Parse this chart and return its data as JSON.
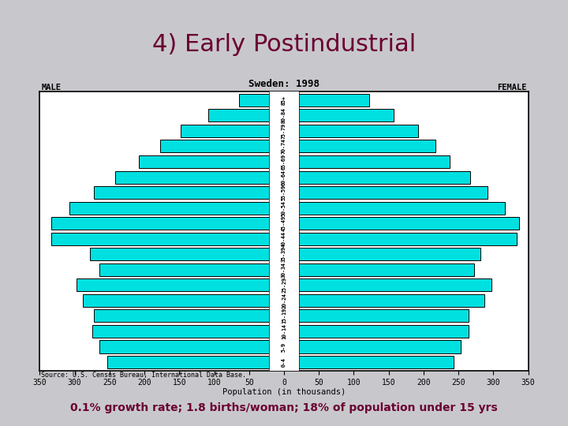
{
  "title": "4) Early Postindustrial",
  "subtitle": "Sweden: 1998",
  "male_label": "MALE",
  "female_label": "FEMALE",
  "xlabel": "Population (in thousands)",
  "source": "Source: U.S. Census Bureau, International Data Base.",
  "bottom_text": "0.1% growth rate; 1.8 births/woman; 18% of population under 15 yrs",
  "background_color": "#c8c8cc",
  "chart_bg": "#ffffff",
  "bar_color": "#00e0e0",
  "bar_edge": "#000000",
  "title_color": "#6b0032",
  "bottom_text_color": "#6b0032",
  "age_groups": [
    "0-4",
    "5-9",
    "10-14",
    "15-19",
    "20-24",
    "25-29",
    "30-34",
    "35-39",
    "40-44",
    "45-49",
    "50-54",
    "55-59",
    "60-64",
    "65-69",
    "70-74",
    "75-79",
    "80-84",
    "85+"
  ],
  "male_values": [
    253,
    265,
    275,
    272,
    288,
    297,
    265,
    278,
    333,
    333,
    307,
    272,
    242,
    208,
    178,
    148,
    108,
    65
  ],
  "female_values": [
    243,
    253,
    265,
    265,
    287,
    297,
    272,
    282,
    333,
    337,
    317,
    292,
    267,
    237,
    217,
    192,
    157,
    122
  ],
  "xlim": 350,
  "x_step": 50
}
